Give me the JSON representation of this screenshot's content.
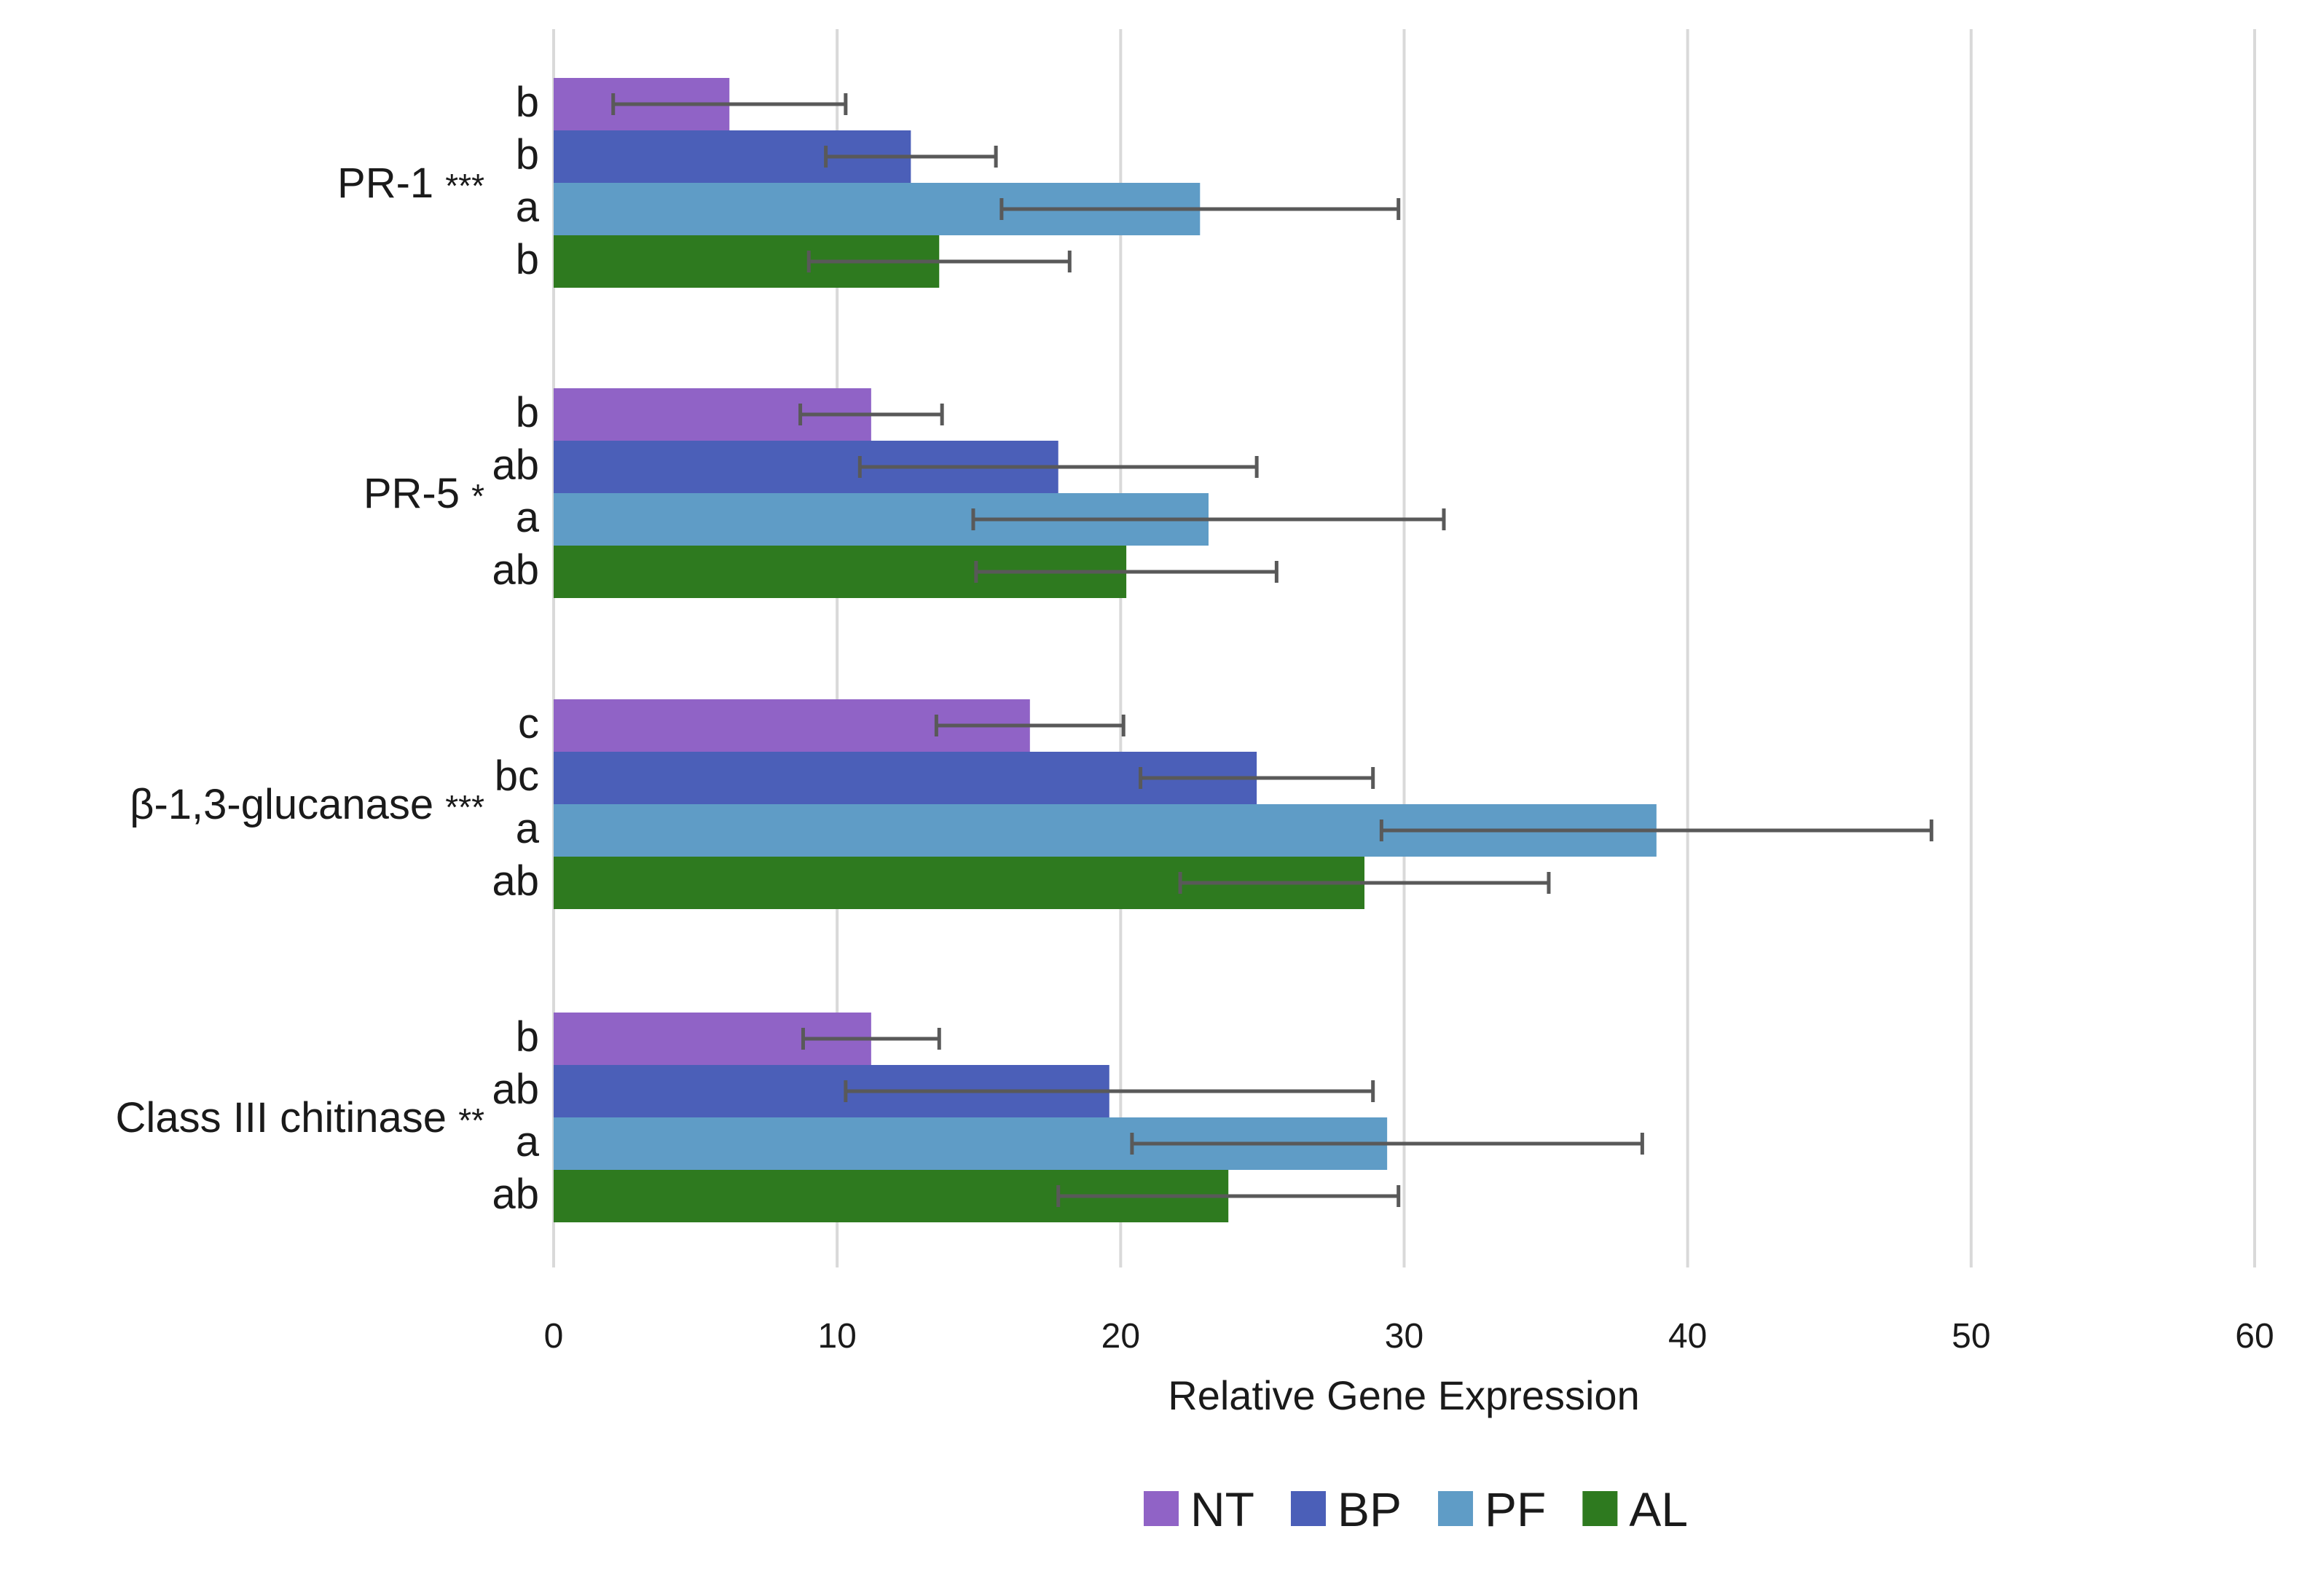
{
  "chart_data": {
    "type": "bar",
    "orientation": "horizontal",
    "title": "",
    "xlabel": "Relative Gene Expression",
    "ylabel": "",
    "xlim": [
      0,
      60
    ],
    "x_ticks": [
      0,
      10,
      20,
      30,
      40,
      50,
      60
    ],
    "grid": true,
    "legend_position": "bottom",
    "colors": {
      "NT": "#9063c6",
      "BP": "#4b5fb8",
      "PF": "#5f9cc6",
      "AL": "#2e7a1f"
    },
    "genes": [
      {
        "name": "PR-1",
        "stars": "***"
      },
      {
        "name": "PR-5",
        "stars": "*"
      },
      {
        "name": "β-1,3-glucanase",
        "stars": "***"
      },
      {
        "name": "Class III chitinase",
        "stars": "**"
      }
    ],
    "series": [
      {
        "name": "NT",
        "values": [
          6.2,
          11.2,
          16.8,
          11.2
        ],
        "errors": [
          4.1,
          2.5,
          3.3,
          2.4
        ],
        "letters": [
          "b",
          "b",
          "c",
          "b"
        ]
      },
      {
        "name": "BP",
        "values": [
          12.6,
          17.8,
          24.8,
          19.6
        ],
        "errors": [
          3.0,
          7.0,
          4.1,
          9.3
        ],
        "letters": [
          "b",
          "ab",
          "bc",
          "ab"
        ]
      },
      {
        "name": "PF",
        "values": [
          22.8,
          23.1,
          38.9,
          29.4
        ],
        "errors": [
          7.0,
          8.3,
          9.7,
          9.0
        ],
        "letters": [
          "a",
          "a",
          "a",
          "a"
        ]
      },
      {
        "name": "AL",
        "values": [
          13.6,
          20.2,
          28.6,
          23.8
        ],
        "errors": [
          4.6,
          5.3,
          6.5,
          6.0
        ],
        "letters": [
          "b",
          "ab",
          "ab",
          "ab"
        ]
      }
    ]
  }
}
